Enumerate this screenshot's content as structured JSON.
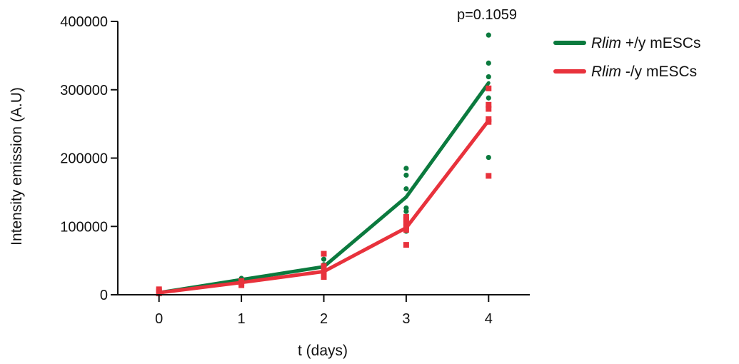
{
  "chart_data": {
    "type": "line",
    "xlabel": "t (days)",
    "ylabel": "Intensity emission (A.U)",
    "xlim": [
      -0.5,
      4.5
    ],
    "ylim": [
      0,
      400000
    ],
    "x_ticks": [
      "0",
      "1",
      "2",
      "3",
      "4"
    ],
    "y_ticks": [
      "0",
      "100000",
      "200000",
      "300000",
      "400000"
    ],
    "x": [
      0,
      1,
      2,
      3,
      4
    ],
    "grid": false,
    "legend_position": "right",
    "annotation": "p=0.1059",
    "series": [
      {
        "name_italic": "Rlim",
        "name_rest": " +/y mESCs",
        "color": "#0b7a3e",
        "marker": "circle",
        "mean": [
          3000,
          22000,
          41000,
          143000,
          310000
        ],
        "points": [
          [
            0,
            2000
          ],
          [
            0,
            4000
          ],
          [
            1,
            21000
          ],
          [
            1,
            24000
          ],
          [
            2,
            38000
          ],
          [
            2,
            44000
          ],
          [
            2,
            52000
          ],
          [
            3,
            93000
          ],
          [
            3,
            96000
          ],
          [
            3,
            100000
          ],
          [
            3,
            105000
          ],
          [
            3,
            122000
          ],
          [
            3,
            127000
          ],
          [
            3,
            155000
          ],
          [
            3,
            175000
          ],
          [
            3,
            185000
          ],
          [
            4,
            201000
          ],
          [
            4,
            288000
          ],
          [
            4,
            319000
          ],
          [
            4,
            339000
          ],
          [
            4,
            380000
          ]
        ]
      },
      {
        "name_italic": "Rlim",
        "name_rest": " -/y mESCs",
        "color": "#e8323c",
        "marker": "square",
        "mean": [
          3000,
          18000,
          34000,
          98000,
          255000
        ],
        "points": [
          [
            0,
            2000
          ],
          [
            0,
            4000
          ],
          [
            0,
            6000
          ],
          [
            0,
            8000
          ],
          [
            1,
            14000
          ],
          [
            1,
            17000
          ],
          [
            1,
            20000
          ],
          [
            2,
            26000
          ],
          [
            2,
            30000
          ],
          [
            2,
            38000
          ],
          [
            2,
            42000
          ],
          [
            2,
            60000
          ],
          [
            3,
            73000
          ],
          [
            3,
            95000
          ],
          [
            3,
            100000
          ],
          [
            3,
            105000
          ],
          [
            3,
            110000
          ],
          [
            3,
            114000
          ],
          [
            4,
            174000
          ],
          [
            4,
            253000
          ],
          [
            4,
            257000
          ],
          [
            4,
            272000
          ],
          [
            4,
            278000
          ],
          [
            4,
            302000
          ]
        ]
      }
    ]
  }
}
